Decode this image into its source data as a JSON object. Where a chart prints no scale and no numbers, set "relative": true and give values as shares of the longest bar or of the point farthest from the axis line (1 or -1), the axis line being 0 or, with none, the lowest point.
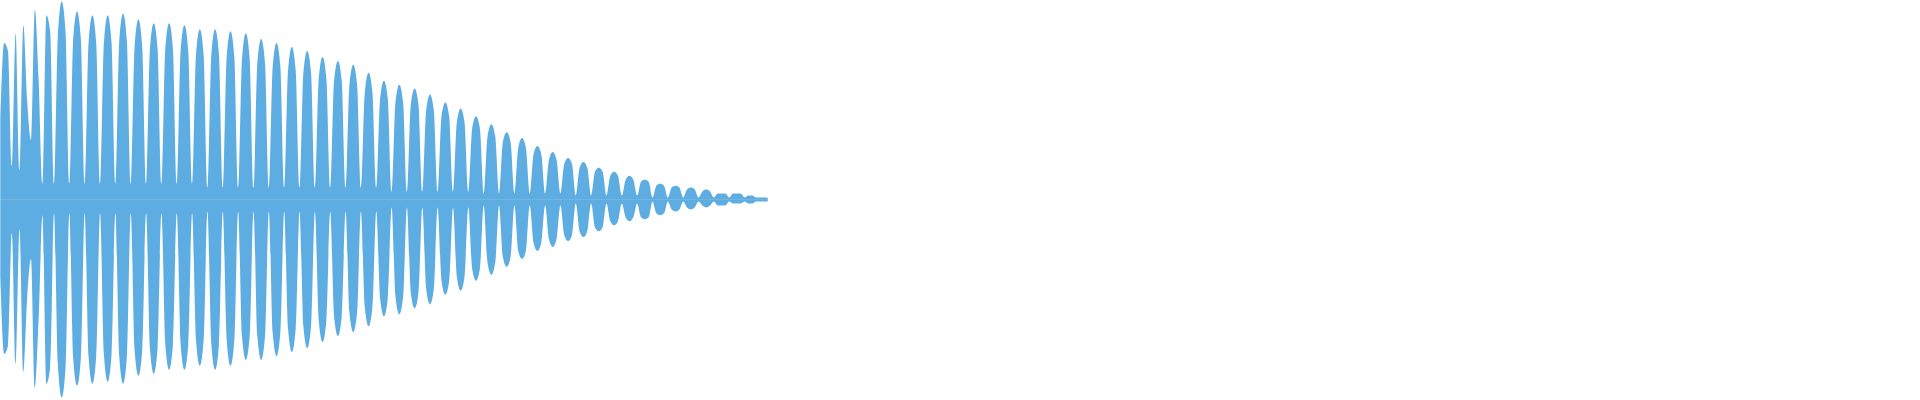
{
  "chart_data": {
    "type": "area",
    "relative": true,
    "categories": [
      null,
      null,
      null,
      null,
      null,
      null,
      null,
      null,
      null,
      null,
      null,
      null,
      null,
      null,
      null,
      null,
      null,
      null,
      null,
      null,
      null,
      null,
      null,
      null,
      null,
      null,
      null,
      null,
      null,
      null,
      null,
      null,
      null,
      null,
      null,
      null,
      null,
      null,
      null,
      null,
      null,
      null,
      null,
      null,
      null,
      null,
      null,
      null,
      null,
      null,
      null,
      null,
      null,
      null,
      null,
      null,
      null,
      null,
      null,
      null,
      null,
      null,
      null,
      null,
      null,
      null,
      null,
      null,
      null,
      null,
      null,
      null,
      null,
      null,
      null,
      null,
      null,
      null,
      null,
      null,
      null,
      null,
      null,
      null,
      null,
      null,
      null,
      null,
      null,
      null,
      null,
      null,
      null,
      null,
      null,
      null,
      null,
      null,
      null,
      null,
      null,
      null,
      null,
      null,
      null,
      null,
      null,
      null,
      null,
      null,
      null,
      null,
      null,
      null,
      null,
      null,
      null,
      null,
      null,
      null,
      null,
      null,
      null,
      null,
      null,
      null,
      null,
      null,
      null,
      null,
      null,
      null,
      null,
      null,
      null,
      null,
      null,
      null,
      null,
      null,
      null,
      null,
      null,
      null,
      null,
      null,
      null,
      null,
      null,
      null,
      null,
      null,
      null,
      null,
      null,
      null,
      null,
      null,
      null,
      null,
      null,
      null,
      null,
      null,
      null,
      null,
      null,
      null,
      null,
      null,
      null,
      null,
      null,
      null,
      null,
      null,
      null,
      null,
      null,
      null,
      null,
      null,
      null,
      null,
      null,
      null,
      null,
      null,
      null,
      null,
      null,
      null,
      null,
      null,
      null,
      null,
      null,
      null,
      null,
      null,
      null
    ],
    "series": [
      {
        "color": "#5dade2",
        "values": [
          0.39,
          0.79,
          0.75,
          0.17,
          0.84,
          0.15,
          0.88,
          0.5,
          0.3,
          0.96,
          0.6,
          0.08,
          0.93,
          0.85,
          0.08,
          0.83,
          1.0,
          0.85,
          0.08,
          0.81,
          0.95,
          0.81,
          0.08,
          0.79,
          0.93,
          0.79,
          0.08,
          0.79,
          0.93,
          0.79,
          0.08,
          0.8,
          0.94,
          0.8,
          0.08,
          0.77,
          0.91,
          0.77,
          0.08,
          0.76,
          0.89,
          0.76,
          0.08,
          0.76,
          0.89,
          0.76,
          0.08,
          0.75,
          0.88,
          0.75,
          0.08,
          0.73,
          0.86,
          0.73,
          0.06,
          0.73,
          0.86,
          0.73,
          0.06,
          0.72,
          0.85,
          0.72,
          0.06,
          0.71,
          0.84,
          0.71,
          0.06,
          0.69,
          0.81,
          0.69,
          0.06,
          0.67,
          0.79,
          0.67,
          0.06,
          0.65,
          0.77,
          0.65,
          0.06,
          0.64,
          0.75,
          0.64,
          0.06,
          0.61,
          0.72,
          0.61,
          0.06,
          0.6,
          0.7,
          0.6,
          0.06,
          0.58,
          0.68,
          0.58,
          0.06,
          0.54,
          0.64,
          0.54,
          0.06,
          0.51,
          0.6,
          0.51,
          0.04,
          0.49,
          0.58,
          0.49,
          0.04,
          0.48,
          0.56,
          0.48,
          0.04,
          0.45,
          0.53,
          0.45,
          0.04,
          0.42,
          0.49,
          0.42,
          0.04,
          0.39,
          0.46,
          0.39,
          0.04,
          0.36,
          0.42,
          0.36,
          0.03,
          0.32,
          0.38,
          0.32,
          0.03,
          0.29,
          0.34,
          0.29,
          0.03,
          0.26,
          0.31,
          0.26,
          0.03,
          0.23,
          0.27,
          0.23,
          0.03,
          0.2,
          0.24,
          0.2,
          0.03,
          0.18,
          0.21,
          0.18,
          0.02,
          0.16,
          0.19,
          0.16,
          0.02,
          0.14,
          0.16,
          0.14,
          0.02,
          0.12,
          0.14,
          0.12,
          0.02,
          0.1,
          0.12,
          0.1,
          0.02,
          0.09,
          0.1,
          0.09,
          0.01,
          0.07,
          0.08,
          0.07,
          0.01,
          0.06,
          0.07,
          0.06,
          0.01,
          0.05,
          0.06,
          0.05,
          0.01,
          0.04,
          0.05,
          0.04,
          0.01,
          0.03,
          0.03,
          0.03,
          0.01,
          0.03,
          0.03,
          0.03,
          0.01,
          0.02,
          0.02,
          0.01,
          0.01,
          0.01,
          0.01
        ]
      },
      {
        "color": "#5dade2",
        "values": [
          -0.39,
          -0.78,
          -0.74,
          -0.17,
          -0.83,
          -0.15,
          -0.87,
          -0.5,
          -0.3,
          -0.95,
          -0.6,
          -0.08,
          -0.93,
          -0.85,
          -0.07,
          -0.83,
          -1.0,
          -0.85,
          -0.07,
          -0.8,
          -0.94,
          -0.8,
          -0.07,
          -0.79,
          -0.93,
          -0.79,
          -0.07,
          -0.78,
          -0.92,
          -0.78,
          -0.07,
          -0.79,
          -0.93,
          -0.79,
          -0.07,
          -0.76,
          -0.89,
          -0.76,
          -0.07,
          -0.75,
          -0.88,
          -0.75,
          -0.07,
          -0.73,
          -0.86,
          -0.73,
          -0.07,
          -0.73,
          -0.86,
          -0.73,
          -0.07,
          -0.71,
          -0.84,
          -0.71,
          -0.06,
          -0.73,
          -0.86,
          -0.73,
          -0.06,
          -0.71,
          -0.84,
          -0.71,
          -0.06,
          -0.69,
          -0.81,
          -0.69,
          -0.06,
          -0.69,
          -0.81,
          -0.69,
          -0.06,
          -0.67,
          -0.79,
          -0.67,
          -0.06,
          -0.65,
          -0.77,
          -0.65,
          -0.06,
          -0.64,
          -0.75,
          -0.64,
          -0.06,
          -0.61,
          -0.72,
          -0.61,
          -0.06,
          -0.59,
          -0.69,
          -0.59,
          -0.06,
          -0.57,
          -0.67,
          -0.57,
          -0.06,
          -0.54,
          -0.64,
          -0.54,
          -0.06,
          -0.5,
          -0.59,
          -0.5,
          -0.04,
          -0.49,
          -0.58,
          -0.49,
          -0.04,
          -0.47,
          -0.55,
          -0.47,
          -0.04,
          -0.45,
          -0.53,
          -0.45,
          -0.04,
          -0.41,
          -0.48,
          -0.41,
          -0.04,
          -0.39,
          -0.46,
          -0.39,
          -0.04,
          -0.35,
          -0.41,
          -0.35,
          -0.03,
          -0.32,
          -0.38,
          -0.32,
          -0.03,
          -0.29,
          -0.34,
          -0.29,
          -0.03,
          -0.26,
          -0.3,
          -0.26,
          -0.03,
          -0.22,
          -0.26,
          -0.22,
          -0.03,
          -0.2,
          -0.24,
          -0.2,
          -0.03,
          -0.18,
          -0.21,
          -0.18,
          -0.02,
          -0.16,
          -0.19,
          -0.16,
          -0.02,
          -0.14,
          -0.16,
          -0.14,
          -0.02,
          -0.11,
          -0.13,
          -0.11,
          -0.02,
          -0.09,
          -0.11,
          -0.09,
          -0.02,
          -0.09,
          -0.1,
          -0.09,
          -0.01,
          -0.07,
          -0.08,
          -0.07,
          -0.01,
          -0.05,
          -0.06,
          -0.05,
          -0.01,
          -0.04,
          -0.05,
          -0.04,
          -0.01,
          -0.03,
          -0.04,
          -0.03,
          -0.01,
          -0.03,
          -0.03,
          -0.03,
          -0.01,
          -0.02,
          -0.02,
          -0.02,
          -0.01,
          -0.02,
          -0.02,
          -0.01,
          -0.01,
          -0.01,
          -0.01
        ]
      }
    ]
  }
}
